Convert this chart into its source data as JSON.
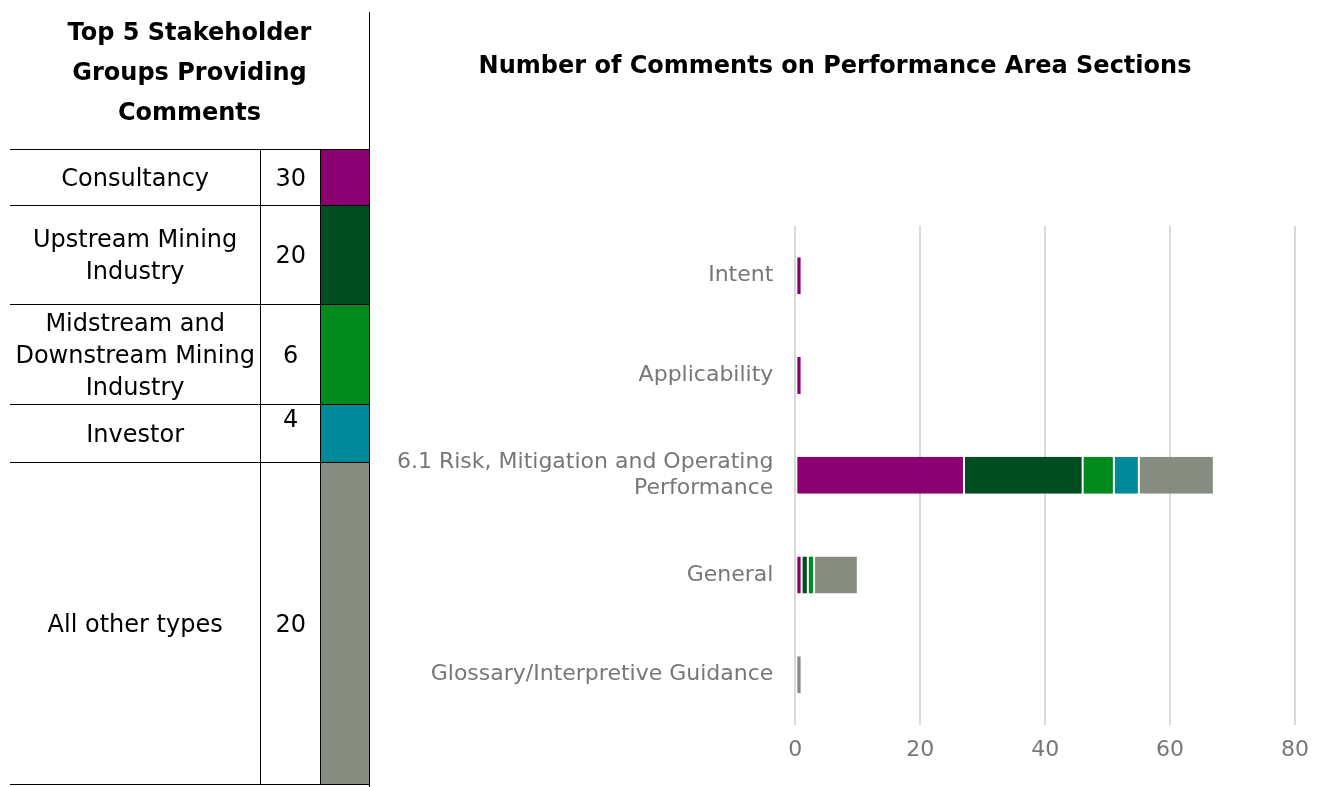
{
  "chart_data": [
    {
      "type": "other",
      "title": "Top 5 Stakeholder Groups Providing Comments",
      "categories": [
        "Consultancy",
        "Upstream Mining Industry",
        "Midstream and Downstream Mining Industry",
        "Investor",
        "All other types"
      ],
      "values": [
        30,
        20,
        6,
        4,
        20
      ],
      "colors": [
        "#8b0070",
        "#004d20",
        "#008a1e",
        "#008a99",
        "#868c80"
      ],
      "data_labels": true
    },
    {
      "type": "bar",
      "orientation": "horizontal",
      "stacked": true,
      "title": "Number of Comments on Performance Area Sections",
      "categories": [
        "Intent",
        "Applicability",
        "6.1 Risk, Mitigation and Operating Performance",
        "General",
        "Glossary/Interpretive Guidance"
      ],
      "series": [
        {
          "color": "#8b0070",
          "values": [
            1,
            1,
            27,
            1,
            null
          ]
        },
        {
          "color": "#004d20",
          "values": [
            null,
            null,
            19,
            1,
            null
          ]
        },
        {
          "color": "#008a1e",
          "values": [
            null,
            null,
            5,
            1,
            null
          ]
        },
        {
          "color": "#008a99",
          "values": [
            null,
            null,
            4,
            null,
            null
          ]
        },
        {
          "color": "#868c80",
          "values": [
            null,
            null,
            12,
            7,
            1
          ]
        }
      ],
      "xlim": [
        0,
        80
      ],
      "xticks": [
        0,
        20,
        40,
        60,
        80
      ],
      "grid": "x",
      "legend": false
    }
  ]
}
